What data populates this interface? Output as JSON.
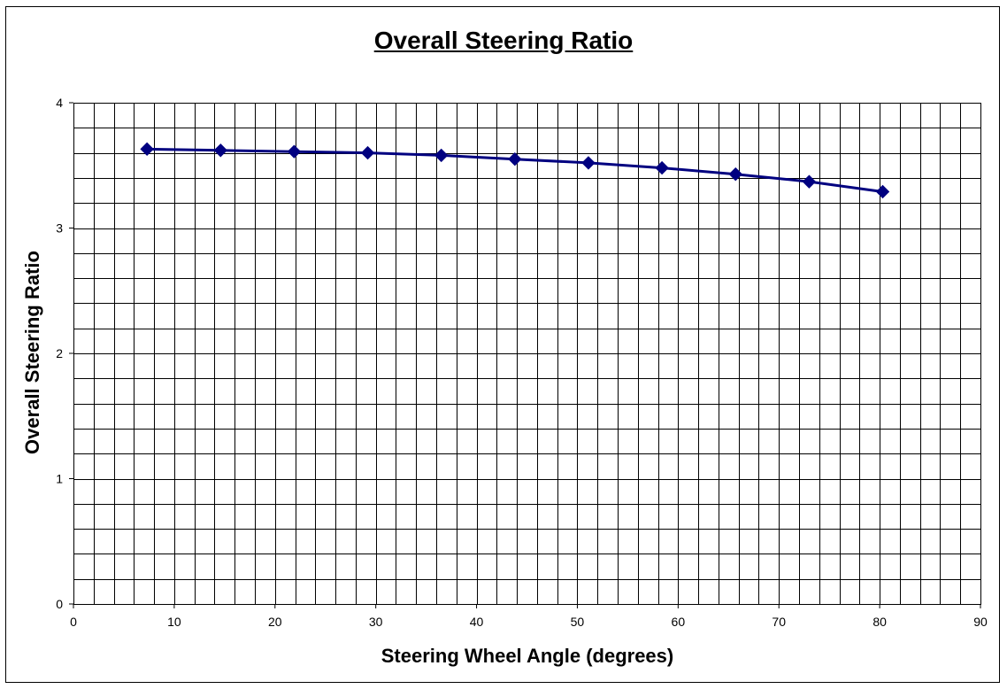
{
  "chart_data": {
    "type": "line",
    "title": "Overall Steering Ratio",
    "xlabel": "Steering Wheel Angle (degrees)",
    "ylabel": "Overall Steering Ratio",
    "xlim": [
      0,
      90
    ],
    "ylim": [
      0,
      4
    ],
    "x_ticks": [
      0,
      10,
      20,
      30,
      40,
      50,
      60,
      70,
      80,
      90
    ],
    "y_ticks": [
      0,
      1,
      2,
      3,
      4
    ],
    "x_minor_step": 2,
    "y_minor_step": 0.2,
    "grid": true,
    "series": [
      {
        "color": "#000080",
        "marker": "diamond",
        "x": [
          7.3,
          14.6,
          21.9,
          29.2,
          36.5,
          43.8,
          51.1,
          58.4,
          65.7,
          73.0,
          80.3
        ],
        "y": [
          3.63,
          3.62,
          3.61,
          3.6,
          3.58,
          3.55,
          3.52,
          3.48,
          3.43,
          3.37,
          3.29
        ]
      }
    ]
  }
}
